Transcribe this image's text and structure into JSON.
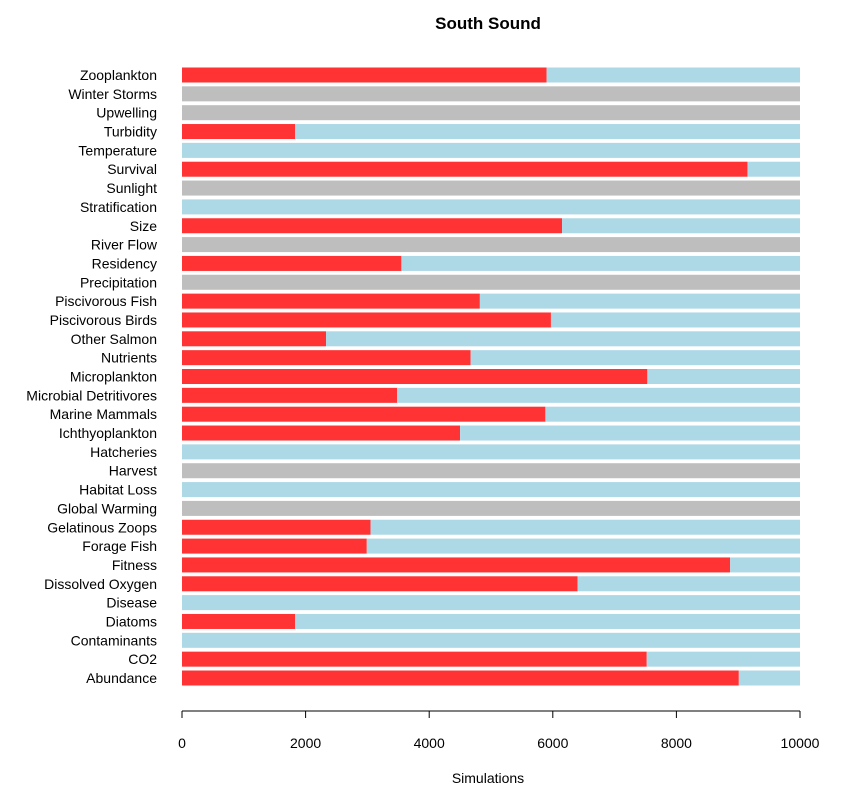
{
  "chart_data": {
    "type": "bar",
    "orientation": "horizontal",
    "stacked": true,
    "title": "South Sound",
    "xlabel": "Simulations",
    "ylabel": "",
    "xlim": [
      0,
      10000
    ],
    "xticks": [
      0,
      2000,
      4000,
      6000,
      8000,
      10000
    ],
    "grid": false,
    "legend": "none",
    "categories": [
      "Zooplankton",
      "Winter Storms",
      "Upwelling",
      "Turbidity",
      "Temperature",
      "Survival",
      "Sunlight",
      "Stratification",
      "Size",
      "River Flow",
      "Residency",
      "Precipitation",
      "Piscivorous Fish",
      "Piscivorous Birds",
      "Other Salmon",
      "Nutrients",
      "Microplankton",
      "Microbial Detritivores",
      "Marine Mammals",
      "Ichthyoplankton",
      "Hatcheries",
      "Harvest",
      "Habitat Loss",
      "Global Warming",
      "Gelatinous Zoops",
      "Forage Fish",
      "Fitness",
      "Dissolved Oxygen",
      "Disease",
      "Diatoms",
      "Contaminants",
      "CO2",
      "Abundance"
    ],
    "series": [
      {
        "color": "#ff3333",
        "values": [
          5900,
          0,
          0,
          1830,
          0,
          9150,
          0,
          0,
          6150,
          0,
          3550,
          0,
          4820,
          5970,
          2330,
          4670,
          7530,
          3480,
          5880,
          4500,
          0,
          0,
          0,
          0,
          3050,
          2990,
          8870,
          6400,
          0,
          1830,
          0,
          7520,
          9010
        ]
      },
      {
        "color": "#add8e6",
        "values": [
          4100,
          0,
          0,
          8170,
          10000,
          850,
          0,
          10000,
          3850,
          0,
          6450,
          0,
          5180,
          4030,
          7670,
          5330,
          2470,
          6520,
          4120,
          5500,
          10000,
          0,
          10000,
          0,
          6950,
          7010,
          1130,
          3600,
          10000,
          8170,
          10000,
          2480,
          990
        ]
      },
      {
        "color": "#bebebe",
        "values": [
          0,
          10000,
          10000,
          0,
          0,
          0,
          10000,
          0,
          0,
          10000,
          0,
          10000,
          0,
          0,
          0,
          0,
          0,
          0,
          0,
          0,
          0,
          10000,
          0,
          10000,
          0,
          0,
          0,
          0,
          0,
          0,
          0,
          0,
          0
        ]
      }
    ]
  }
}
